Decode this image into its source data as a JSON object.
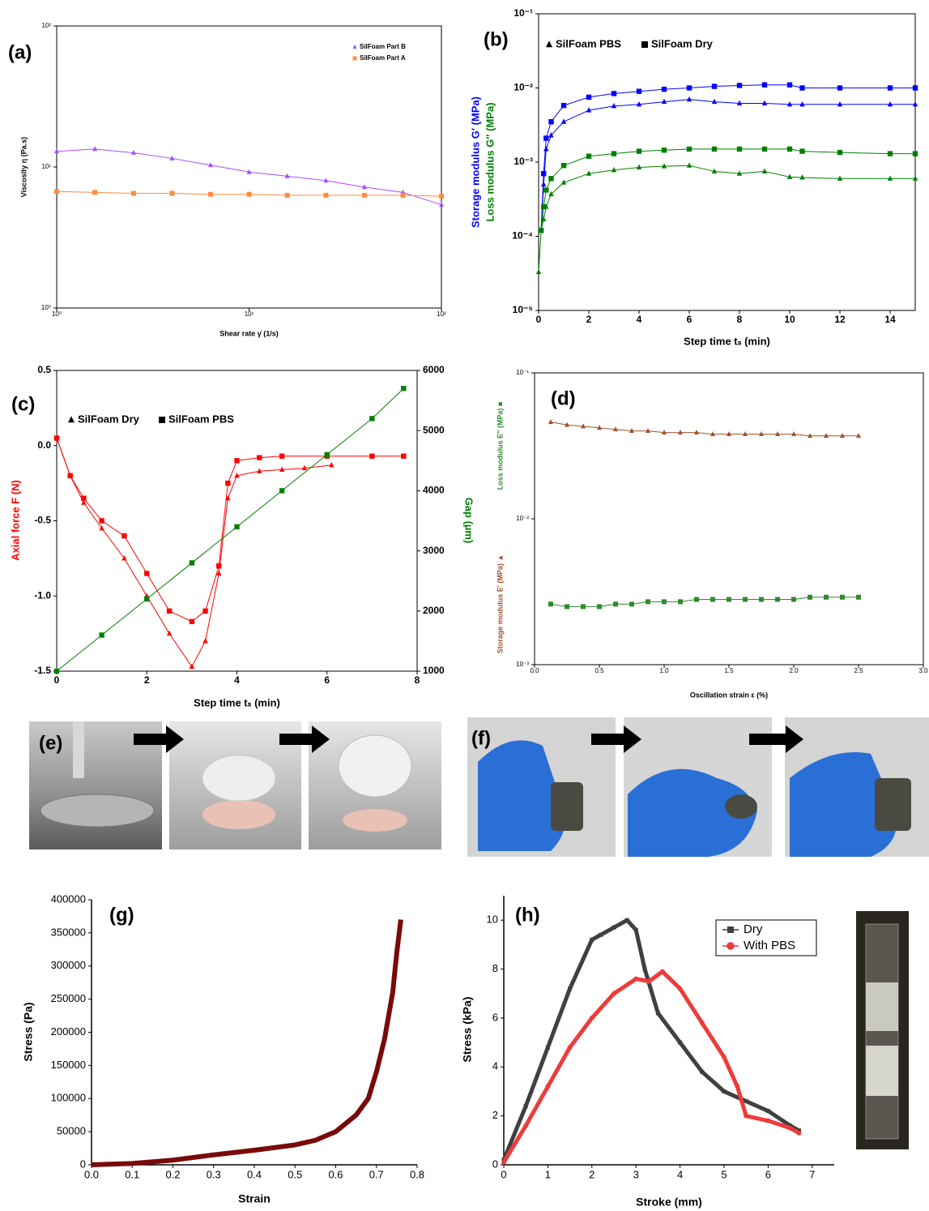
{
  "chart_data": [
    {
      "type": "line",
      "panel_label": "(a)",
      "xlabel": "Shear rate γ̇ (1/s)",
      "ylabel": "Viscosity η (Pa.s)",
      "xlog": true,
      "ylog": true,
      "xlim": [
        1,
        100
      ],
      "ylim": [
        1,
        100
      ],
      "xticks": [
        {
          "value": 1,
          "label": "10⁰"
        },
        {
          "value": 10,
          "label": "10¹"
        },
        {
          "value": 100,
          "label": "10²"
        }
      ],
      "yticks": [
        {
          "value": 1,
          "label": "10⁰"
        },
        {
          "value": 10,
          "label": "10¹"
        },
        {
          "value": 100,
          "label": "10²"
        }
      ],
      "legend_loc": "upper right",
      "x": [
        1,
        1.58,
        2.51,
        3.98,
        6.31,
        10,
        15.8,
        25.1,
        39.8,
        63.1,
        100
      ],
      "series": [
        {
          "name": "SilFoam Part B",
          "color": "#a64dff",
          "marker": "triangle",
          "values": [
            12.9,
            13.4,
            12.6,
            11.5,
            10.3,
            9.2,
            8.6,
            8.0,
            7.2,
            6.6,
            5.4
          ]
        },
        {
          "name": "SilFoam Part A",
          "color": "#ff8c40",
          "marker": "square",
          "values": [
            6.7,
            6.6,
            6.5,
            6.5,
            6.4,
            6.4,
            6.3,
            6.3,
            6.3,
            6.3,
            6.2
          ]
        }
      ]
    },
    {
      "type": "line",
      "panel_label": "(b)",
      "xlabel": "Step time tₛ (min)",
      "ylabels": [
        {
          "text": "Storage modulus G′ (MPa)",
          "color": "#0000ff"
        },
        {
          "text": "Loss modulus G″ (MPa)",
          "color": "#008000"
        }
      ],
      "ylog": true,
      "xlim": [
        0,
        15
      ],
      "ylim": [
        1e-05,
        0.1
      ],
      "xticks": [
        0,
        2,
        4,
        6,
        8,
        10,
        12,
        14
      ],
      "yticks": [
        {
          "value": 1e-05,
          "label": "10⁻⁵"
        },
        {
          "value": 0.0001,
          "label": "10⁻⁴"
        },
        {
          "value": 0.001,
          "label": "10⁻³"
        },
        {
          "value": 0.01,
          "label": "10⁻²"
        },
        {
          "value": 0.1,
          "label": "10⁻¹"
        }
      ],
      "legend_entries": [
        {
          "name": "SilFoam PBS",
          "marker": "triangle"
        },
        {
          "name": "SilFoam Dry",
          "marker": "square"
        }
      ],
      "x": [
        0,
        0.1,
        0.2,
        0.3,
        0.5,
        1,
        2,
        3,
        4,
        5,
        6,
        7,
        8,
        9,
        10,
        10.5,
        12,
        14,
        15
      ],
      "series": [
        {
          "color": "#0000ff",
          "marker": "square",
          "values": [
            null,
            0.00012,
            0.0007,
            0.0021,
            0.0035,
            0.0058,
            0.0075,
            0.0084,
            0.009,
            0.0096,
            0.01,
            0.0105,
            0.0108,
            0.011,
            0.011,
            0.01,
            0.01,
            0.01,
            0.01
          ]
        },
        {
          "color": "#0000ff",
          "marker": "triangle",
          "values": [
            null,
            0.00012,
            0.0005,
            0.0015,
            0.0023,
            0.0035,
            0.005,
            0.0057,
            0.006,
            0.0065,
            0.007,
            0.0065,
            0.0062,
            0.0062,
            0.006,
            0.006,
            0.006,
            0.006,
            0.006
          ]
        },
        {
          "color": "#008000",
          "marker": "square",
          "values": [
            null,
            0.00012,
            0.00025,
            0.00042,
            0.0006,
            0.0009,
            0.0012,
            0.0013,
            0.0014,
            0.00145,
            0.0015,
            0.0015,
            0.0015,
            0.0015,
            0.0015,
            0.0014,
            0.00135,
            0.0013,
            0.0013
          ]
        },
        {
          "color": "#008000",
          "marker": "triangle",
          "values": [
            3.3e-05,
            0.00012,
            0.00017,
            0.00025,
            0.00037,
            0.00053,
            0.0007,
            0.00078,
            0.00085,
            0.00088,
            0.0009,
            0.00075,
            0.0007,
            0.00075,
            0.00063,
            0.00062,
            0.0006,
            0.0006,
            0.0006
          ]
        }
      ]
    },
    {
      "type": "line",
      "panel_label": "(c)",
      "xlabel": "Step time tₛ (min)",
      "ylabels": [
        {
          "text": "Axial force F (N)",
          "color": "#ff0000"
        }
      ],
      "y2label": {
        "text": "Gap (µm)",
        "color": "#008000"
      },
      "xlim": [
        0,
        8
      ],
      "ylim": [
        -1.5,
        0.5
      ],
      "y2lim": [
        1000,
        6000
      ],
      "xticks": [
        0,
        2,
        4,
        6,
        8
      ],
      "yticks": [
        -1.5,
        {
          "value": -1,
          "label": "-1.0"
        },
        -0.5,
        {
          "value": 0,
          "label": "0.0"
        },
        0.5
      ],
      "y2ticks": [
        1000,
        2000,
        3000,
        4000,
        5000,
        6000
      ],
      "legend_entries": [
        {
          "name": "SilFoam Dry",
          "marker": "triangle"
        },
        {
          "name": "SilFoam PBS",
          "marker": "square"
        }
      ],
      "series": [
        {
          "color": "#ff0000",
          "marker": "triangle",
          "x": [
            0,
            0.3,
            0.6,
            1,
            1.5,
            2,
            2.5,
            3,
            3.3,
            3.6,
            3.8,
            4,
            4.5,
            5,
            5.5,
            6.1
          ],
          "values": [
            0.05,
            -0.2,
            -0.38,
            -0.55,
            -0.75,
            -1.0,
            -1.25,
            -1.47,
            -1.3,
            -0.85,
            -0.35,
            -0.2,
            -0.17,
            -0.16,
            -0.15,
            -0.13
          ]
        },
        {
          "color": "#ff0000",
          "marker": "square",
          "x": [
            0,
            0.3,
            0.6,
            1,
            1.5,
            2,
            2.5,
            3,
            3.3,
            3.6,
            3.8,
            4,
            4.5,
            5,
            6,
            7,
            7.7
          ],
          "values": [
            0.05,
            -0.2,
            -0.35,
            -0.5,
            -0.6,
            -0.85,
            -1.1,
            -1.17,
            -1.1,
            -0.8,
            -0.25,
            -0.1,
            -0.08,
            -0.07,
            -0.07,
            -0.07,
            -0.07
          ]
        },
        {
          "color": "#008000",
          "marker": "square",
          "axis": "y2",
          "x": [
            0,
            1,
            2,
            3,
            4,
            5,
            6,
            7,
            7.7
          ],
          "values": [
            1000,
            1600,
            2200,
            2800,
            3400,
            4000,
            4600,
            5200,
            5700
          ]
        }
      ]
    },
    {
      "type": "line",
      "panel_label": "(d)",
      "xlabel": "Oscillation strain ε (%)",
      "ylabels": [
        {
          "text": "Storage modulus E′ (MPa) ▲",
          "color": "#a0522d"
        },
        {
          "text": "Loss modulus E″ (MPa) ■",
          "color": "#2e8b2e"
        }
      ],
      "ylog": true,
      "xlim": [
        0,
        3
      ],
      "ylim": [
        0.001,
        0.1
      ],
      "xticks": [
        {
          "value": 0,
          "label": "0.0"
        },
        0.5,
        {
          "value": 1,
          "label": "1.0"
        },
        1.5,
        {
          "value": 2,
          "label": "2.0"
        },
        2.5,
        {
          "value": 3,
          "label": "3.0"
        }
      ],
      "yticks": [
        {
          "value": 0.001,
          "label": "10⁻³"
        },
        {
          "value": 0.01,
          "label": "10⁻²"
        },
        {
          "value": 0.1,
          "label": "10⁻¹"
        }
      ],
      "x": [
        0.125,
        0.25,
        0.375,
        0.5,
        0.625,
        0.75,
        0.875,
        1,
        1.125,
        1.25,
        1.375,
        1.5,
        1.625,
        1.75,
        1.875,
        2,
        2.125,
        2.25,
        2.375,
        2.5
      ],
      "series": [
        {
          "color": "#a0522d",
          "marker": "triangle",
          "values": [
            0.046,
            0.044,
            0.043,
            0.042,
            0.041,
            0.04,
            0.04,
            0.039,
            0.039,
            0.039,
            0.038,
            0.038,
            0.038,
            0.038,
            0.038,
            0.038,
            0.037,
            0.037,
            0.037,
            0.037
          ]
        },
        {
          "color": "#2e8b2e",
          "marker": "square",
          "values": [
            0.0026,
            0.0025,
            0.0025,
            0.0025,
            0.0026,
            0.0026,
            0.0027,
            0.0027,
            0.0027,
            0.0028,
            0.0028,
            0.0028,
            0.0028,
            0.0028,
            0.0028,
            0.0028,
            0.0029,
            0.0029,
            0.0029,
            0.0029
          ]
        }
      ]
    },
    {
      "type": "line",
      "panel_label": "(g)",
      "xlabel": "Strain",
      "ylabel": "Stress (Pa)",
      "xlim": [
        0,
        0.8
      ],
      "ylim": [
        0,
        400000
      ],
      "xticks": [
        {
          "value": 0,
          "label": "0.0"
        },
        0.1,
        0.2,
        0.3,
        0.4,
        0.5,
        0.6,
        0.7,
        0.8
      ],
      "yticks": [
        0,
        50000,
        100000,
        150000,
        200000,
        250000,
        300000,
        350000,
        400000
      ],
      "series": [
        {
          "color": "#7a0a0a",
          "line_width": 6,
          "x": [
            0,
            0.1,
            0.2,
            0.3,
            0.4,
            0.5,
            0.55,
            0.6,
            0.65,
            0.68,
            0.7,
            0.72,
            0.74,
            0.75,
            0.76
          ],
          "values": [
            0,
            2000,
            7000,
            15000,
            22000,
            30000,
            37000,
            50000,
            75000,
            100000,
            140000,
            190000,
            260000,
            320000,
            370000
          ]
        }
      ]
    },
    {
      "type": "line",
      "panel_label": "(h)",
      "xlabel": "Stroke (mm)",
      "ylabel": "Stress (kPa)",
      "xlim": [
        0,
        7.5
      ],
      "ylim": [
        0,
        11
      ],
      "xticks": [
        0,
        1,
        2,
        3,
        4,
        5,
        6,
        7
      ],
      "yticks": [
        0,
        2,
        4,
        6,
        8,
        10
      ],
      "legend_loc": "upper right",
      "series": [
        {
          "name": "Dry",
          "color": "#404040",
          "marker": "square",
          "line_width": 5,
          "x": [
            0,
            0.5,
            1,
            1.5,
            2,
            2.2,
            2.5,
            2.8,
            3,
            3.2,
            3.5,
            4,
            4.5,
            5,
            5.5,
            6,
            6.5,
            6.7
          ],
          "values": [
            0.2,
            2.4,
            4.8,
            7.2,
            9.2,
            9.4,
            9.7,
            10.0,
            9.6,
            8.0,
            6.2,
            5.0,
            3.8,
            3.0,
            2.6,
            2.2,
            1.6,
            1.4
          ]
        },
        {
          "name": "With PBS",
          "color": "#ee3b3b",
          "marker": "circle",
          "line_width": 5,
          "x": [
            0,
            0.5,
            1,
            1.5,
            2,
            2.5,
            3,
            3.3,
            3.6,
            4,
            4.5,
            5,
            5.3,
            5.5,
            6,
            6.5,
            6.7
          ],
          "values": [
            0.1,
            1.6,
            3.2,
            4.8,
            6.0,
            7.0,
            7.6,
            7.5,
            7.9,
            7.2,
            5.8,
            4.4,
            3.2,
            2.0,
            1.8,
            1.5,
            1.3
          ]
        }
      ]
    }
  ],
  "photos": [
    {
      "label": "(e)"
    },
    {
      "label": "(f)"
    }
  ]
}
